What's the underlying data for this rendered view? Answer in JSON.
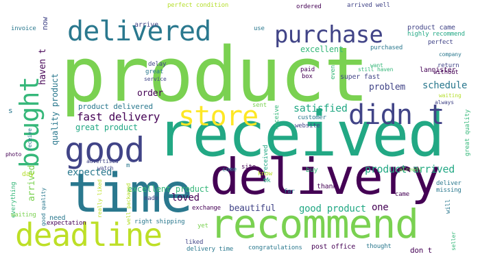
{
  "words": [
    {
      "text": "product",
      "color": "#7ad151"
    },
    {
      "text": "received",
      "color": "#22a884"
    },
    {
      "text": "delivery",
      "color": "#440154"
    },
    {
      "text": "time",
      "color": "#2a788e"
    },
    {
      "text": "recommend",
      "color": "#7ad151"
    },
    {
      "text": "deadline",
      "color": "#bddf26"
    },
    {
      "text": "delivered",
      "color": "#2a788e"
    },
    {
      "text": "bought",
      "color": "#35b779"
    },
    {
      "text": "good",
      "color": "#414487"
    },
    {
      "text": "purchase",
      "color": "#414487"
    },
    {
      "text": "store",
      "color": "#fde725"
    },
    {
      "text": "didn t",
      "color": "#414487"
    },
    {
      "text": "fast delivery",
      "color": "#440154"
    },
    {
      "text": "product delivered",
      "color": "#2a788e"
    },
    {
      "text": "great product",
      "color": "#22a884"
    },
    {
      "text": "satisfied",
      "color": "#22a884"
    },
    {
      "text": "schedule",
      "color": "#2a788e"
    },
    {
      "text": "problem",
      "color": "#414487"
    },
    {
      "text": "order",
      "color": "#440154"
    },
    {
      "text": "excellent",
      "color": "#35b779"
    },
    {
      "text": "expected",
      "color": "#2a788e"
    },
    {
      "text": "product arrived",
      "color": "#22a884"
    },
    {
      "text": "excellent product",
      "color": "#35b779"
    },
    {
      "text": "loved",
      "color": "#440154"
    },
    {
      "text": "beautiful",
      "color": "#414487"
    },
    {
      "text": "good product",
      "color": "#22a884"
    },
    {
      "text": "one",
      "color": "#440154"
    },
    {
      "text": "quality product",
      "color": "#2a788e"
    },
    {
      "text": "haven t",
      "color": "#440154"
    },
    {
      "text": "arrived",
      "color": "#7ad151"
    },
    {
      "text": "now",
      "color": "#414487"
    },
    {
      "text": "arrive",
      "color": "#414487"
    },
    {
      "text": "perfect condition",
      "color": "#b5de2b"
    },
    {
      "text": "use",
      "color": "#2a788e"
    },
    {
      "text": "ordered",
      "color": "#440154"
    },
    {
      "text": "arrived well",
      "color": "#414487"
    },
    {
      "text": "product came",
      "color": "#414487"
    },
    {
      "text": "highly recommend",
      "color": "#22a884"
    },
    {
      "text": "invoice",
      "color": "#2a788e"
    },
    {
      "text": "purchased",
      "color": "#2a788e"
    },
    {
      "text": "perfect",
      "color": "#414487"
    },
    {
      "text": "company",
      "color": "#2a788e"
    },
    {
      "text": "want",
      "color": "#35b779"
    },
    {
      "text": "still haven",
      "color": "#35b779"
    },
    {
      "text": "return",
      "color": "#414487"
    },
    {
      "text": "without",
      "color": "#440154"
    },
    {
      "text": "lannister",
      "color": "#440154"
    },
    {
      "text": "super fast",
      "color": "#414487"
    },
    {
      "text": "paid",
      "color": "#440154"
    },
    {
      "text": "box",
      "color": "#440154"
    },
    {
      "text": "even",
      "color": "#35b779"
    },
    {
      "text": "delay",
      "color": "#414487"
    },
    {
      "text": "great",
      "color": "#2a788e"
    },
    {
      "text": "service",
      "color": "#414487"
    },
    {
      "text": "always",
      "color": "#414487"
    },
    {
      "text": "waiting",
      "color": "#b5de2b"
    },
    {
      "text": "great quality",
      "color": "#35b779"
    },
    {
      "text": "sent",
      "color": "#7ad151"
    },
    {
      "text": "receive",
      "color": "#35b779"
    },
    {
      "text": "customer",
      "color": "#2a788e"
    },
    {
      "text": "website",
      "color": "#414487"
    },
    {
      "text": "s",
      "color": "#2a788e"
    },
    {
      "text": "receive",
      "color": "#2a788e"
    },
    {
      "text": "photo",
      "color": "#440154"
    },
    {
      "text": "advertised",
      "color": "#414487"
    },
    {
      "text": "watch",
      "color": "#414487"
    },
    {
      "text": "m",
      "color": "#2a788e"
    },
    {
      "text": "come",
      "color": "#2a788e"
    },
    {
      "text": "site",
      "color": "#440154"
    },
    {
      "text": "t received",
      "color": "#22a884"
    },
    {
      "text": "buy",
      "color": "#35b779"
    },
    {
      "text": "already",
      "color": "#7ad151"
    },
    {
      "text": "thank",
      "color": "#440154"
    },
    {
      "text": "deliver",
      "color": "#2a788e"
    },
    {
      "text": "missing",
      "color": "#2a788e"
    },
    {
      "text": "came",
      "color": "#440154"
    },
    {
      "text": "will",
      "color": "#2a788e"
    },
    {
      "text": "know",
      "color": "#b5de2b"
    },
    {
      "text": "ok",
      "color": "#22a884"
    },
    {
      "text": "far",
      "color": "#2a788e"
    },
    {
      "text": "day",
      "color": "#b5de2b"
    },
    {
      "text": "everything",
      "color": "#35b779"
    },
    {
      "text": "good quality",
      "color": "#2a788e"
    },
    {
      "text": "need",
      "color": "#2a788e"
    },
    {
      "text": "waiting",
      "color": "#7ad151"
    },
    {
      "text": "expectation",
      "color": "#440154"
    },
    {
      "text": "really liked",
      "color": "#bddf26"
    },
    {
      "text": "well packaged",
      "color": "#b5de2b"
    },
    {
      "text": "made",
      "color": "#414487"
    },
    {
      "text": "right shipping",
      "color": "#2a788e"
    },
    {
      "text": "yet",
      "color": "#7ad151"
    },
    {
      "text": "exchange",
      "color": "#440154"
    },
    {
      "text": "liked",
      "color": "#414487"
    },
    {
      "text": "delivery time",
      "color": "#2a788e"
    },
    {
      "text": "congratulations",
      "color": "#2a788e"
    },
    {
      "text": "post office",
      "color": "#440154"
    },
    {
      "text": "thought",
      "color": "#2a788e"
    },
    {
      "text": "don t",
      "color": "#440154"
    },
    {
      "text": "seller",
      "color": "#35b779"
    }
  ]
}
